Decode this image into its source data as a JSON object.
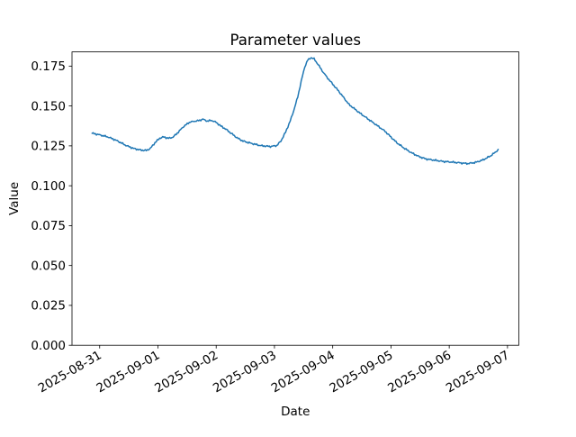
{
  "figure": {
    "background": "#ffffff",
    "spine_color": "#000000",
    "text_color": "#000000"
  },
  "chart_data": {
    "type": "line",
    "title": "Parameter values",
    "xlabel": "Date",
    "ylabel": "Value",
    "grid": false,
    "legend": null,
    "x_unit_days_since": "2025-08-31",
    "xlim": [
      -0.475,
      7.195
    ],
    "ylim": [
      0,
      0.1839
    ],
    "x_ticks": [
      {
        "t": 0,
        "label": "2025-08-31"
      },
      {
        "t": 1,
        "label": "2025-09-01"
      },
      {
        "t": 2,
        "label": "2025-09-02"
      },
      {
        "t": 3,
        "label": "2025-09-03"
      },
      {
        "t": 4,
        "label": "2025-09-04"
      },
      {
        "t": 5,
        "label": "2025-09-05"
      },
      {
        "t": 6,
        "label": "2025-09-06"
      },
      {
        "t": 7,
        "label": "2025-09-07"
      }
    ],
    "y_ticks": [
      {
        "v": 0.0,
        "label": "0.000"
      },
      {
        "v": 0.025,
        "label": "0.025"
      },
      {
        "v": 0.05,
        "label": "0.050"
      },
      {
        "v": 0.075,
        "label": "0.075"
      },
      {
        "v": 0.1,
        "label": "0.100"
      },
      {
        "v": 0.125,
        "label": "0.125"
      },
      {
        "v": 0.15,
        "label": "0.150"
      },
      {
        "v": 0.175,
        "label": "0.175"
      }
    ],
    "series": [
      {
        "name": "parameter-values",
        "color": "#1f77b4",
        "line_width": 1.5,
        "points": [
          [
            -0.13,
            0.1329
          ],
          [
            0.0,
            0.1319
          ],
          [
            0.15,
            0.1305
          ],
          [
            0.3,
            0.1282
          ],
          [
            0.45,
            0.1253
          ],
          [
            0.58,
            0.1234
          ],
          [
            0.7,
            0.1224
          ],
          [
            0.8,
            0.1221
          ],
          [
            0.87,
            0.1234
          ],
          [
            0.95,
            0.127
          ],
          [
            1.03,
            0.1298
          ],
          [
            1.1,
            0.1306
          ],
          [
            1.18,
            0.1297
          ],
          [
            1.26,
            0.1305
          ],
          [
            1.35,
            0.1336
          ],
          [
            1.43,
            0.1368
          ],
          [
            1.54,
            0.1398
          ],
          [
            1.62,
            0.1404
          ],
          [
            1.7,
            0.1408
          ],
          [
            1.77,
            0.1417
          ],
          [
            1.85,
            0.1405
          ],
          [
            1.92,
            0.141
          ],
          [
            2.0,
            0.1397
          ],
          [
            2.08,
            0.1374
          ],
          [
            2.16,
            0.1356
          ],
          [
            2.26,
            0.1328
          ],
          [
            2.36,
            0.13
          ],
          [
            2.46,
            0.128
          ],
          [
            2.62,
            0.1264
          ],
          [
            2.77,
            0.1251
          ],
          [
            2.93,
            0.1246
          ],
          [
            3.04,
            0.1252
          ],
          [
            3.11,
            0.128
          ],
          [
            3.19,
            0.1335
          ],
          [
            3.27,
            0.1405
          ],
          [
            3.33,
            0.147
          ],
          [
            3.4,
            0.1557
          ],
          [
            3.46,
            0.1656
          ],
          [
            3.52,
            0.1745
          ],
          [
            3.57,
            0.1787
          ],
          [
            3.63,
            0.1803
          ],
          [
            3.68,
            0.1795
          ],
          [
            3.75,
            0.176
          ],
          [
            3.82,
            0.172
          ],
          [
            3.9,
            0.1681
          ],
          [
            4.0,
            0.1637
          ],
          [
            4.1,
            0.1594
          ],
          [
            4.2,
            0.1547
          ],
          [
            4.28,
            0.1509
          ],
          [
            4.33,
            0.1495
          ],
          [
            4.45,
            0.146
          ],
          [
            4.6,
            0.142
          ],
          [
            4.75,
            0.1381
          ],
          [
            4.9,
            0.1341
          ],
          [
            5.0,
            0.1305
          ],
          [
            5.1,
            0.127
          ],
          [
            5.22,
            0.1237
          ],
          [
            5.35,
            0.1207
          ],
          [
            5.48,
            0.1183
          ],
          [
            5.6,
            0.1168
          ],
          [
            5.75,
            0.116
          ],
          [
            5.9,
            0.1152
          ],
          [
            6.05,
            0.1148
          ],
          [
            6.2,
            0.1143
          ],
          [
            6.32,
            0.1139
          ],
          [
            6.45,
            0.1146
          ],
          [
            6.58,
            0.1162
          ],
          [
            6.7,
            0.1185
          ],
          [
            6.8,
            0.1212
          ],
          [
            6.84,
            0.1228
          ]
        ]
      }
    ]
  }
}
